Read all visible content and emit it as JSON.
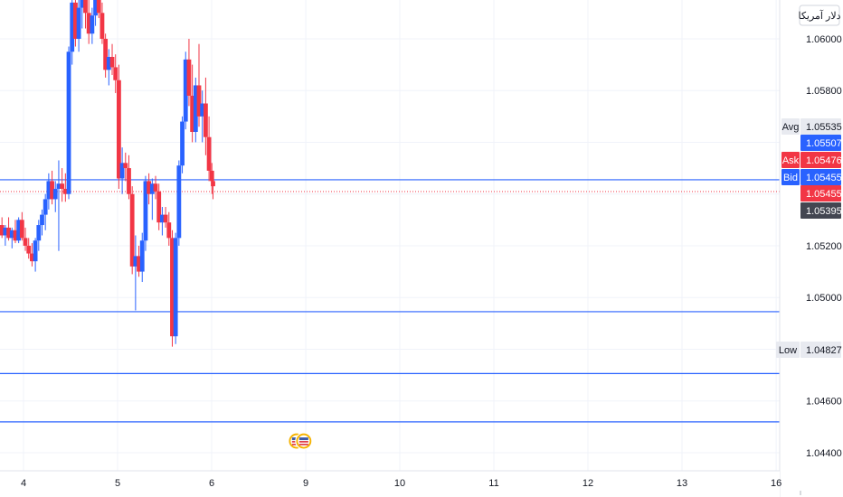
{
  "chart_data": {
    "type": "candlestick",
    "currency_label": "دلار آمریکا",
    "ylim": [
      1.0433,
      1.0615
    ],
    "y_ticks": [
      "1.06000",
      "1.05800",
      "1.05200",
      "1.05000",
      "1.04600",
      "1.04400"
    ],
    "x_ticks": [
      {
        "label": "4",
        "day": 4
      },
      {
        "label": "5",
        "day": 5
      },
      {
        "label": "6",
        "day": 6
      },
      {
        "label": "9",
        "day": 9
      },
      {
        "label": "10",
        "day": 10
      },
      {
        "label": "11",
        "day": 11
      },
      {
        "label": "12",
        "day": 12
      },
      {
        "label": "13",
        "day": 13
      },
      {
        "label": "16",
        "day": 16
      }
    ],
    "levels": [
      {
        "value": 1.05455,
        "label": "1.05455",
        "color": "#2962ff"
      },
      {
        "value": 1.04945,
        "label": "1.04945",
        "color": "#2962ff"
      },
      {
        "value": 1.04706,
        "label": "1.04706",
        "color": "#2962ff"
      },
      {
        "value": 1.04519,
        "label": "1.04519",
        "color": "#2962ff"
      }
    ],
    "price_tags": [
      {
        "name": "avg",
        "prefix": "Avg",
        "value": 1.05535,
        "label": "1.05535",
        "style": "light"
      },
      {
        "name": "blue-level",
        "prefix": "",
        "value": 1.05507,
        "label": "1.05507",
        "style": "blue"
      },
      {
        "name": "ask",
        "prefix": "Ask",
        "value": 1.05476,
        "label": "1.05476",
        "style": "red"
      },
      {
        "name": "bid",
        "prefix": "Bid",
        "value": 1.05455,
        "label": "1.05455",
        "style": "blue"
      },
      {
        "name": "last",
        "prefix": "",
        "value": 1.05455,
        "label": "1.05455",
        "style": "red"
      },
      {
        "name": "dark",
        "prefix": "",
        "value": 1.05395,
        "label": "1.05395",
        "style": "dark"
      },
      {
        "name": "low",
        "prefix": "Low",
        "value": 1.04827,
        "label": "1.04827",
        "style": "light"
      }
    ],
    "current_price": 1.05455,
    "candle_start_day": 3.7,
    "candle_step_day": 0.0355,
    "candles": [
      [
        1.0529,
        1.0532,
        1.0524,
        1.0525
      ],
      [
        1.0525,
        1.053,
        1.0521,
        1.0528
      ],
      [
        1.0528,
        1.0531,
        1.0523,
        1.0524
      ],
      [
        1.0524,
        1.0528,
        1.052,
        1.0527
      ],
      [
        1.0527,
        1.0531,
        1.0522,
        1.0523
      ],
      [
        1.0523,
        1.0527,
        1.0519,
        1.0526
      ],
      [
        1.0526,
        1.053,
        1.0521,
        1.0522
      ],
      [
        1.0522,
        1.0531,
        1.0521,
        1.053
      ],
      [
        1.053,
        1.0533,
        1.0522,
        1.0523
      ],
      [
        1.0523,
        1.0527,
        1.0518,
        1.052
      ],
      [
        1.052,
        1.0523,
        1.0515,
        1.0517
      ],
      [
        1.0517,
        1.0521,
        1.0512,
        1.0514
      ],
      [
        1.0514,
        1.0523,
        1.051,
        1.0522
      ],
      [
        1.0522,
        1.053,
        1.0518,
        1.0528
      ],
      [
        1.0528,
        1.0534,
        1.0524,
        1.0532
      ],
      [
        1.0532,
        1.054,
        1.0526,
        1.0538
      ],
      [
        1.0538,
        1.0548,
        1.0534,
        1.0545
      ],
      [
        1.0545,
        1.0549,
        1.0536,
        1.0538
      ],
      [
        1.0538,
        1.0545,
        1.0533,
        1.0542
      ],
      [
        1.0542,
        1.0553,
        1.0518,
        1.0544
      ],
      [
        1.0544,
        1.055,
        1.0537,
        1.0542
      ],
      [
        1.0542,
        1.0548,
        1.0537,
        1.054
      ],
      [
        1.054,
        1.0597,
        1.0538,
        1.0595
      ],
      [
        1.0595,
        1.0618,
        1.059,
        1.0614
      ],
      [
        1.0614,
        1.0618,
        1.0597,
        1.06
      ],
      [
        1.06,
        1.0615,
        1.0595,
        1.0612
      ],
      [
        1.0612,
        1.0618,
        1.0604,
        1.0615
      ],
      [
        1.0615,
        1.0618,
        1.0604,
        1.061
      ],
      [
        1.061,
        1.0617,
        1.0598,
        1.0602
      ],
      [
        1.0602,
        1.0612,
        1.0598,
        1.0609
      ],
      [
        1.0609,
        1.0617,
        1.0605,
        1.0615
      ],
      [
        1.0615,
        1.0617,
        1.0608,
        1.061
      ],
      [
        1.061,
        1.0614,
        1.0598,
        1.06
      ],
      [
        1.06,
        1.0602,
        1.0585,
        1.0588
      ],
      [
        1.0588,
        1.0596,
        1.0582,
        1.0593
      ],
      [
        1.0593,
        1.0598,
        1.0586,
        1.0589
      ],
      [
        1.0589,
        1.0594,
        1.0579,
        1.0584
      ],
      [
        1.0584,
        1.059,
        1.0542,
        1.0546
      ],
      [
        1.0546,
        1.0558,
        1.054,
        1.0552
      ],
      [
        1.0552,
        1.0556,
        1.0545,
        1.055
      ],
      [
        1.055,
        1.0555,
        1.0538,
        1.054
      ],
      [
        1.054,
        1.0543,
        1.0509,
        1.0512
      ],
      [
        1.0512,
        1.0524,
        1.0495,
        1.0516
      ],
      [
        1.0516,
        1.052,
        1.0508,
        1.051
      ],
      [
        1.051,
        1.0525,
        1.0506,
        1.0522
      ],
      [
        1.0522,
        1.0547,
        1.0518,
        1.0545
      ],
      [
        1.0545,
        1.0548,
        1.0536,
        1.054
      ],
      [
        1.054,
        1.0546,
        1.053,
        1.0544
      ],
      [
        1.0544,
        1.0547,
        1.0538,
        1.0541
      ],
      [
        1.0541,
        1.0544,
        1.0526,
        1.0529
      ],
      [
        1.0529,
        1.0535,
        1.0524,
        1.0532
      ],
      [
        1.0532,
        1.0535,
        1.0527,
        1.0529
      ],
      [
        1.0529,
        1.0533,
        1.052,
        1.0523
      ],
      [
        1.0523,
        1.0526,
        1.0481,
        1.0485
      ],
      [
        1.0485,
        1.0525,
        1.0482,
        1.0523
      ],
      [
        1.0523,
        1.0553,
        1.052,
        1.0551
      ],
      [
        1.0551,
        1.057,
        1.0548,
        1.0568
      ],
      [
        1.0568,
        1.0595,
        1.0565,
        1.0592
      ],
      [
        1.0592,
        1.06,
        1.0574,
        1.0578
      ],
      [
        1.0578,
        1.059,
        1.056,
        1.0564
      ],
      [
        1.0564,
        1.0585,
        1.056,
        1.0582
      ],
      [
        1.0582,
        1.0598,
        1.0566,
        1.057
      ],
      [
        1.057,
        1.058,
        1.056,
        1.0575
      ],
      [
        1.0575,
        1.0585,
        1.0555,
        1.0562
      ],
      [
        1.0562,
        1.057,
        1.0545,
        1.0549
      ],
      [
        1.0549,
        1.0552,
        1.054,
        1.0545
      ],
      [
        1.0545,
        1.0548,
        1.0538,
        1.0543
      ]
    ]
  },
  "icons": [
    {
      "name": "us-flag-event-icon",
      "day": 8.82,
      "value": 1.04445
    }
  ]
}
